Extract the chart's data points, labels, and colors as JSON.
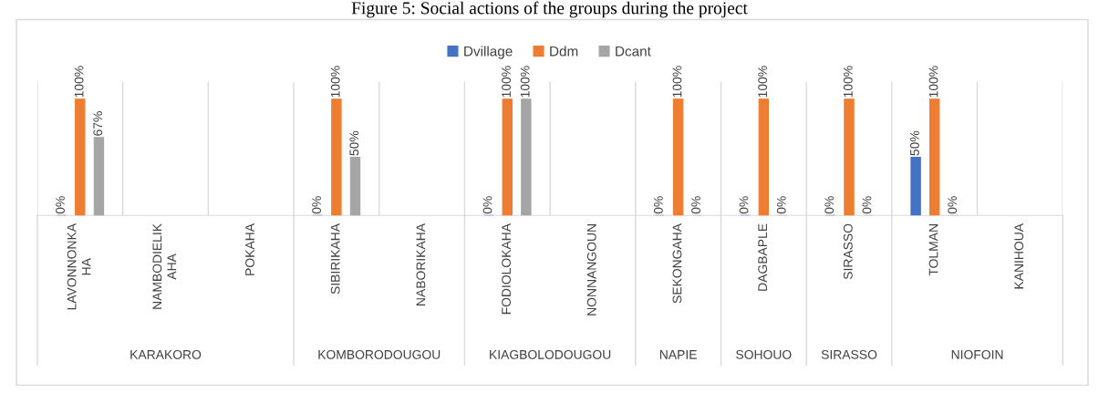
{
  "chart_data": {
    "type": "bar",
    "title": "Figure 5: Social actions of the groups during the project",
    "categories": [
      "LAVONNONKA\nHA",
      "NAMBODIELIK\nAHA",
      "POKAHA",
      "SIBIRIKAHA",
      "NABORIKAHA",
      "FODIOLOKAHA",
      "NONNANGOUN",
      "SEKONGAHA",
      "DAGBAPLE",
      "SIRASSO",
      "TOLMAN",
      "KANIHOUA"
    ],
    "series": [
      {
        "name": "Dvillage",
        "color": "#4472c4",
        "values": [
          0,
          null,
          null,
          0,
          null,
          0,
          null,
          0,
          0,
          0,
          50,
          null
        ],
        "value_labels": [
          "0%",
          null,
          null,
          "0%",
          null,
          "0%",
          null,
          "0%",
          "0%",
          "0%",
          "50%",
          null
        ]
      },
      {
        "name": "Ddm",
        "color": "#ed7d31",
        "values": [
          100,
          null,
          null,
          100,
          null,
          100,
          null,
          100,
          100,
          100,
          100,
          null
        ],
        "value_labels": [
          "100%",
          null,
          null,
          "100%",
          null,
          "100%",
          null,
          "100%",
          "100%",
          "100%",
          "100%",
          null
        ]
      },
      {
        "name": "Dcant",
        "color": "#a5a5a5",
        "values": [
          67,
          null,
          null,
          50,
          null,
          100,
          null,
          0,
          0,
          0,
          0,
          null
        ],
        "value_labels": [
          "67%",
          null,
          null,
          "50%",
          null,
          "100%",
          null,
          "0%",
          "0%",
          "0%",
          "0%",
          null
        ]
      }
    ],
    "annotations": [
      "KARAKORO",
      "KOMBORODOUGOU",
      "KIAGBOLODOUGOU",
      "NAPIE",
      "SOHOUO",
      "SIRASSO",
      "NIOFOIN"
    ],
    "legend": "top",
    "grid": "x"
  }
}
